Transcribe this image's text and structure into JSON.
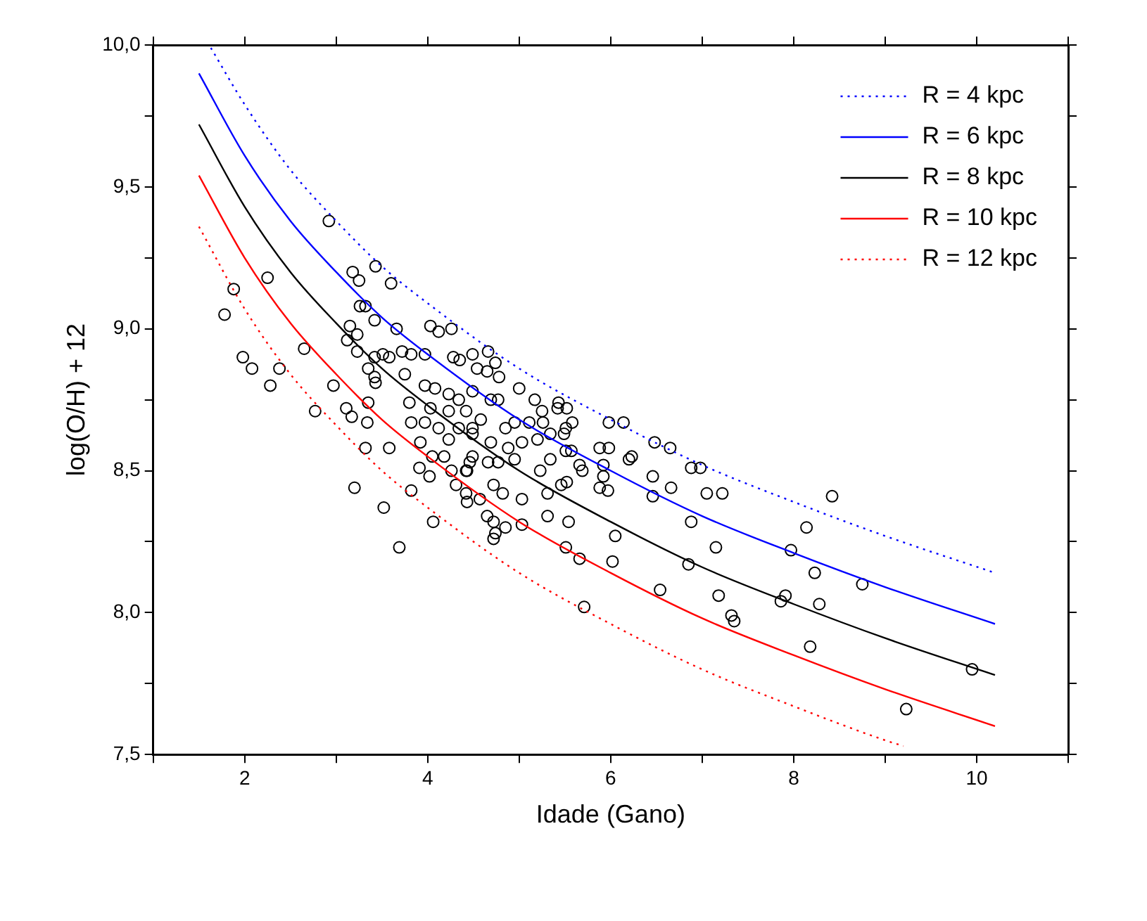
{
  "chart_data": {
    "type": "scatter",
    "xlabel": "Idade (Gano)",
    "ylabel": "log(O/H) + 12",
    "xlim": [
      1,
      11
    ],
    "ylim": [
      7.5,
      10.0
    ],
    "xticks": [
      {
        "value": 1,
        "label": null
      },
      2,
      {
        "value": 3,
        "label": null
      },
      4,
      {
        "value": 5,
        "label": null
      },
      6,
      {
        "value": 7,
        "label": null
      },
      8,
      {
        "value": 9,
        "label": null
      },
      10,
      {
        "value": 11,
        "label": null
      }
    ],
    "yticks": [
      {
        "value": 7.5,
        "label": "7,5"
      },
      {
        "value": 7.75,
        "label": null
      },
      {
        "value": 8.0,
        "label": "8,0"
      },
      {
        "value": 8.25,
        "label": null
      },
      {
        "value": 8.5,
        "label": "8,5"
      },
      {
        "value": 8.75,
        "label": null
      },
      {
        "value": 9.0,
        "label": "9,0"
      },
      {
        "value": 9.25,
        "label": null
      },
      {
        "value": 9.5,
        "label": "9,5"
      },
      {
        "value": 9.75,
        "label": null
      },
      {
        "value": 10.0,
        "label": "10,0"
      }
    ],
    "grid": false,
    "legend": "top right",
    "series": [
      {
        "marker": "circle",
        "color": "#000000",
        "x": [
          2.92,
          2.25,
          1.88,
          1.78,
          1.98,
          2.08,
          2.38,
          2.28,
          2.65,
          2.77,
          2.97,
          3.18,
          3.25,
          3.43,
          3.6,
          3.26,
          3.32,
          3.42,
          3.66,
          3.15,
          3.23,
          3.12,
          3.23,
          3.42,
          3.51,
          3.58,
          3.72,
          3.82,
          3.35,
          3.42,
          3.43,
          3.75,
          3.11,
          3.17,
          3.34,
          3.35,
          3.32,
          3.58,
          3.2,
          3.52,
          3.82,
          3.69,
          4.06,
          3.91,
          4.02,
          3.97,
          3.82,
          3.92,
          4.05,
          4.18,
          4.31,
          4.43,
          4.26,
          4.42,
          3.8,
          3.97,
          4.08,
          4.23,
          4.34,
          4.03,
          4.12,
          4.26,
          3.97,
          4.28,
          4.35,
          4.49,
          4.66,
          4.54,
          4.65,
          4.74,
          4.78,
          5.0,
          5.17,
          5.43,
          5.42,
          5.52,
          5.25,
          5.58,
          5.51,
          5.49,
          5.26,
          5.34,
          5.11,
          4.95,
          4.85,
          4.69,
          4.77,
          4.49,
          4.58,
          4.49,
          4.69,
          4.88,
          5.03,
          5.2,
          5.51,
          5.57,
          5.34,
          5.23,
          4.95,
          4.66,
          4.77,
          4.46,
          4.43,
          4.72,
          4.82,
          5.03,
          5.31,
          5.46,
          5.52,
          5.66,
          5.69,
          5.88,
          5.98,
          5.92,
          5.92,
          5.88,
          5.97,
          5.98,
          6.14,
          6.2,
          6.23,
          6.46,
          6.66,
          6.48,
          6.65,
          6.88,
          6.98,
          7.05,
          7.22,
          6.46,
          6.88,
          7.15,
          6.05,
          5.54,
          5.31,
          5.03,
          4.65,
          4.72,
          4.74,
          4.85,
          4.72,
          5.51,
          5.66,
          6.02,
          6.85,
          6.54,
          7.18,
          7.32,
          7.35,
          5.71,
          4.42,
          4.57,
          8.42,
          8.14,
          7.97,
          8.23,
          8.75,
          7.91,
          7.86,
          8.28,
          8.18,
          9.95,
          9.23,
          4.23,
          4.42,
          4.03,
          4.34,
          4.49,
          4.12,
          4.23,
          4.49
        ],
        "values": [
          9.38,
          9.18,
          9.14,
          9.05,
          8.9,
          8.86,
          8.86,
          8.8,
          8.93,
          8.71,
          8.8,
          9.2,
          9.17,
          9.22,
          9.16,
          9.08,
          9.08,
          9.03,
          9.0,
          9.01,
          8.98,
          8.96,
          8.92,
          8.9,
          8.91,
          8.9,
          8.92,
          8.91,
          8.86,
          8.83,
          8.81,
          8.84,
          8.72,
          8.69,
          8.67,
          8.74,
          8.58,
          8.58,
          8.44,
          8.37,
          8.43,
          8.23,
          8.32,
          8.51,
          8.48,
          8.67,
          8.67,
          8.6,
          8.55,
          8.55,
          8.45,
          8.39,
          8.5,
          8.5,
          8.74,
          8.8,
          8.79,
          8.77,
          8.75,
          9.01,
          8.99,
          9.0,
          8.91,
          8.9,
          8.89,
          8.91,
          8.92,
          8.86,
          8.85,
          8.88,
          8.83,
          8.79,
          8.75,
          8.74,
          8.72,
          8.72,
          8.71,
          8.67,
          8.65,
          8.63,
          8.67,
          8.63,
          8.67,
          8.67,
          8.65,
          8.75,
          8.75,
          8.78,
          8.68,
          8.65,
          8.6,
          8.58,
          8.6,
          8.61,
          8.57,
          8.57,
          8.54,
          8.5,
          8.54,
          8.53,
          8.53,
          8.53,
          8.5,
          8.45,
          8.42,
          8.4,
          8.42,
          8.45,
          8.46,
          8.52,
          8.5,
          8.58,
          8.58,
          8.52,
          8.48,
          8.44,
          8.43,
          8.67,
          8.67,
          8.54,
          8.55,
          8.48,
          8.44,
          8.6,
          8.58,
          8.51,
          8.51,
          8.42,
          8.42,
          8.41,
          8.32,
          8.23,
          8.27,
          8.32,
          8.34,
          8.31,
          8.34,
          8.32,
          8.28,
          8.3,
          8.26,
          8.23,
          8.19,
          8.18,
          8.17,
          8.08,
          8.06,
          7.99,
          7.97,
          8.02,
          8.42,
          8.4,
          8.41,
          8.3,
          8.22,
          8.14,
          8.1,
          8.06,
          8.04,
          8.03,
          7.88,
          7.8,
          7.66,
          8.71,
          8.71,
          8.72,
          8.65,
          8.63,
          8.65,
          8.61,
          8.55
        ]
      },
      {
        "type": "line",
        "name": "R = 4 kpc",
        "color": "#0000ff",
        "line_style": "dotted",
        "x": [
          1.63,
          2,
          2.5,
          3,
          3.5,
          4,
          5,
          6,
          7,
          8,
          9,
          10.2
        ],
        "values": [
          9.99,
          9.79,
          9.56,
          9.38,
          9.22,
          9.09,
          8.86,
          8.68,
          8.52,
          8.39,
          8.27,
          8.14
        ]
      },
      {
        "type": "line",
        "name": "R = 6 kpc",
        "color": "#0000ff",
        "line_style": "solid",
        "x": [
          1.5,
          2,
          2.5,
          3,
          3.5,
          4,
          5,
          6,
          7,
          8,
          9,
          10.2
        ],
        "values": [
          9.9,
          9.61,
          9.38,
          9.2,
          9.04,
          8.91,
          8.68,
          8.5,
          8.34,
          8.21,
          8.09,
          7.96
        ]
      },
      {
        "type": "line",
        "name": "R = 8 kpc",
        "color": "#000000",
        "line_style": "solid",
        "x": [
          1.5,
          2,
          2.5,
          3,
          3.5,
          4,
          5,
          6,
          7,
          8,
          9,
          10.2
        ],
        "values": [
          9.72,
          9.43,
          9.2,
          9.02,
          8.86,
          8.73,
          8.5,
          8.32,
          8.16,
          8.03,
          7.91,
          7.78
        ]
      },
      {
        "type": "line",
        "name": "R = 10 kpc",
        "color": "#ff0000",
        "line_style": "solid",
        "x": [
          1.5,
          2,
          2.5,
          3,
          3.5,
          4,
          5,
          6,
          7,
          8,
          9,
          10.2
        ],
        "values": [
          9.54,
          9.25,
          9.02,
          8.84,
          8.68,
          8.55,
          8.32,
          8.14,
          7.98,
          7.85,
          7.73,
          7.6
        ]
      },
      {
        "type": "line",
        "name": "R = 12 kpc",
        "color": "#ff0000",
        "line_style": "dotted",
        "x": [
          1.5,
          2,
          2.5,
          3,
          3.5,
          4,
          5,
          6,
          7,
          8,
          9,
          9.2
        ],
        "values": [
          9.36,
          9.07,
          8.84,
          8.66,
          8.5,
          8.37,
          8.14,
          7.96,
          7.8,
          7.67,
          7.55,
          7.53
        ]
      }
    ]
  }
}
